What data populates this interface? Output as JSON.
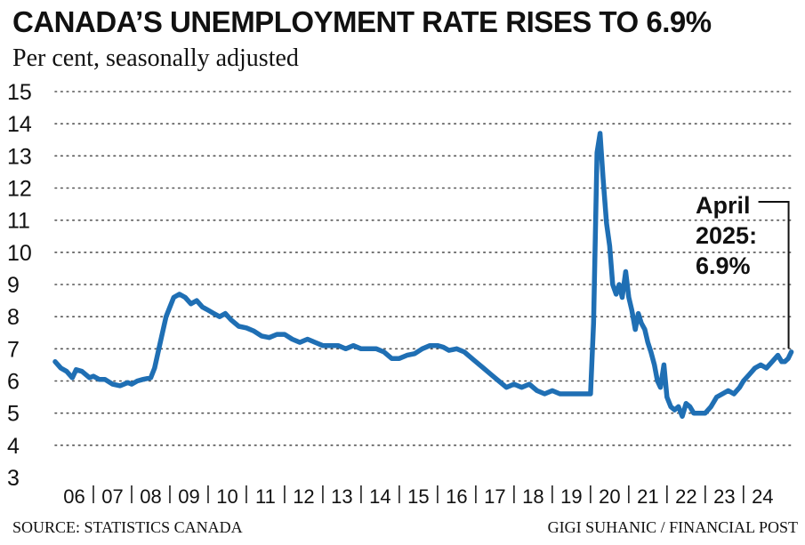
{
  "header": {
    "title": "CANADA’S UNEMPLOYMENT RATE RISES TO 6.9%",
    "subtitle": "Per cent, seasonally adjusted"
  },
  "footer": {
    "source": "SOURCE: STATISTICS CANADA",
    "credit": "GIGI SUHANIC / FINANCIAL POST"
  },
  "colors": {
    "line": "#1f6fb4",
    "grid": "#555555",
    "text": "#111111"
  },
  "chart_data": {
    "type": "line",
    "title": "CANADA’S UNEMPLOYMENT RATE RISES TO 6.9%",
    "subtitle": "Per cent, seasonally adjusted",
    "xlabel": "",
    "ylabel": "",
    "ylim": [
      3,
      15
    ],
    "yticks": [
      "3",
      "4",
      "5",
      "6",
      "7",
      "8",
      "9",
      "10",
      "11",
      "12",
      "13",
      "14",
      "15"
    ],
    "xlim": [
      2006.0,
      2025.33
    ],
    "xticks": [
      "06",
      "07",
      "08",
      "09",
      "10",
      "11",
      "12",
      "13",
      "14",
      "15",
      "16",
      "17",
      "18",
      "19",
      "20",
      "21",
      "22",
      "23",
      "24"
    ],
    "grid": "horizontal dotted",
    "legend": "none",
    "annotation": {
      "lines": [
        "April",
        "2025:",
        "6.9%"
      ],
      "x": 2025.25,
      "y": 6.9
    },
    "series": [
      {
        "x": [
          2006.0,
          2006.15,
          2006.3,
          2006.45,
          2006.55,
          2006.7,
          2006.9,
          2007.0,
          2007.15,
          2007.3,
          2007.5,
          2007.7,
          2007.9,
          2008.0,
          2008.15,
          2008.3,
          2008.5,
          2008.6,
          2008.75,
          2008.9,
          2009.1,
          2009.25,
          2009.4,
          2009.55,
          2009.7,
          2009.85,
          2010.0,
          2010.15,
          2010.3,
          2010.45,
          2010.6,
          2010.8,
          2011.0,
          2011.2,
          2011.4,
          2011.6,
          2011.8,
          2012.0,
          2012.2,
          2012.4,
          2012.6,
          2012.8,
          2013.0,
          2013.2,
          2013.4,
          2013.6,
          2013.8,
          2014.0,
          2014.2,
          2014.4,
          2014.6,
          2014.8,
          2015.0,
          2015.2,
          2015.4,
          2015.6,
          2015.8,
          2016.0,
          2016.15,
          2016.3,
          2016.5,
          2016.7,
          2016.9,
          2017.0,
          2017.2,
          2017.4,
          2017.6,
          2017.8,
          2018.0,
          2018.2,
          2018.4,
          2018.6,
          2018.8,
          2019.0,
          2019.2,
          2019.4,
          2019.6,
          2019.8,
          2020.0,
          2020.08,
          2020.17,
          2020.25,
          2020.33,
          2020.42,
          2020.5,
          2020.58,
          2020.67,
          2020.75,
          2020.83,
          2020.92,
          2021.0,
          2021.08,
          2021.17,
          2021.25,
          2021.33,
          2021.42,
          2021.5,
          2021.58,
          2021.67,
          2021.75,
          2021.83,
          2021.92,
          2022.0,
          2022.1,
          2022.2,
          2022.3,
          2022.4,
          2022.5,
          2022.6,
          2022.7,
          2022.85,
          2023.0,
          2023.15,
          2023.3,
          2023.45,
          2023.6,
          2023.75,
          2023.9,
          2024.0,
          2024.15,
          2024.3,
          2024.45,
          2024.6,
          2024.75,
          2024.9,
          2025.0,
          2025.08,
          2025.17,
          2025.25
        ],
        "values": [
          6.6,
          6.4,
          6.3,
          6.1,
          6.35,
          6.3,
          6.1,
          6.15,
          6.05,
          6.05,
          5.9,
          5.85,
          5.95,
          5.9,
          6.0,
          6.05,
          6.1,
          6.4,
          7.2,
          8.0,
          8.6,
          8.7,
          8.6,
          8.4,
          8.5,
          8.3,
          8.2,
          8.1,
          8.0,
          8.1,
          7.9,
          7.7,
          7.65,
          7.55,
          7.4,
          7.35,
          7.45,
          7.45,
          7.3,
          7.2,
          7.3,
          7.2,
          7.1,
          7.1,
          7.1,
          7.0,
          7.1,
          7.0,
          7.0,
          7.0,
          6.9,
          6.7,
          6.7,
          6.8,
          6.85,
          7.0,
          7.1,
          7.1,
          7.05,
          6.95,
          7.0,
          6.9,
          6.7,
          6.6,
          6.4,
          6.2,
          6.0,
          5.8,
          5.9,
          5.8,
          5.9,
          5.7,
          5.6,
          5.7,
          5.6,
          5.6,
          5.6,
          5.6,
          5.6,
          7.8,
          13.1,
          13.7,
          12.3,
          10.9,
          10.2,
          9.0,
          8.7,
          9.0,
          8.6,
          9.4,
          8.6,
          8.2,
          7.6,
          8.1,
          7.8,
          7.6,
          7.2,
          6.9,
          6.5,
          6.0,
          5.8,
          6.5,
          5.5,
          5.2,
          5.1,
          5.2,
          4.9,
          5.3,
          5.2,
          5.0,
          5.0,
          5.0,
          5.2,
          5.5,
          5.6,
          5.7,
          5.6,
          5.8,
          6.0,
          6.2,
          6.4,
          6.5,
          6.4,
          6.6,
          6.8,
          6.6,
          6.6,
          6.7,
          6.9
        ]
      }
    ]
  }
}
